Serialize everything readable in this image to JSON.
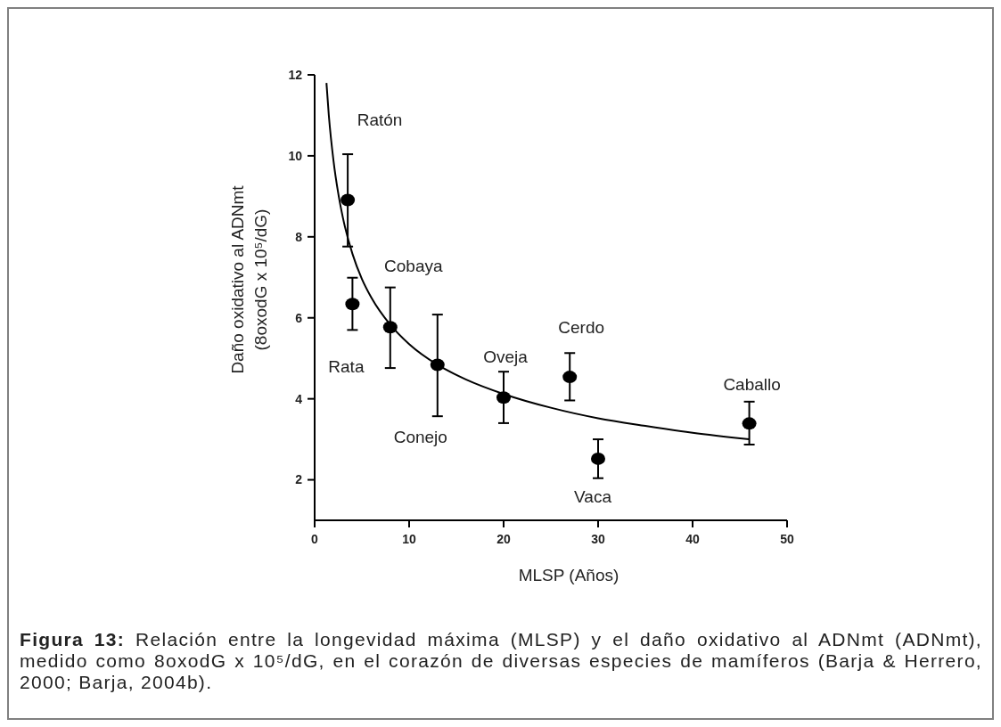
{
  "chart_data": {
    "type": "scatter",
    "xlabel": "MLSP (Años)",
    "ylabel": "Daño oxidativo al ADNmt\n(8oxodG x 10⁵/dG)",
    "xlim": [
      0,
      50
    ],
    "xticks": [
      0,
      10,
      20,
      30,
      40,
      50
    ],
    "ylim": [
      1,
      12
    ],
    "yticks": [
      2,
      4,
      6,
      8,
      10,
      12
    ],
    "grid": false,
    "marker": "circle",
    "series": [
      {
        "color": "#000000",
        "x": [
          3.5,
          4,
          8,
          13,
          20,
          27,
          30,
          46
        ],
        "values": [
          8.91,
          6.34,
          5.77,
          4.84,
          4.03,
          4.54,
          2.52,
          3.39
        ],
        "errors": [
          [
            7.76,
            10.04
          ],
          [
            5.7,
            6.99
          ],
          [
            4.76,
            6.75
          ],
          [
            3.57,
            6.08
          ],
          [
            3.4,
            4.67
          ],
          [
            3.96,
            5.13
          ],
          [
            2.04,
            3.0
          ],
          [
            2.87,
            3.93
          ]
        ]
      },
      {
        "type": "line",
        "color": "#000000",
        "marker": "none",
        "x": [
          1.25,
          1.5,
          2,
          2.5,
          3,
          4,
          5,
          6,
          8,
          10,
          13,
          16,
          20,
          25,
          30,
          35,
          40,
          46
        ],
        "values": [
          11.8,
          11.0,
          9.87,
          9.07,
          8.46,
          7.58,
          6.96,
          6.5,
          5.83,
          5.35,
          4.84,
          4.48,
          4.12,
          3.78,
          3.52,
          3.33,
          3.16,
          3.0
        ]
      }
    ],
    "annotations": [
      "Ratón",
      "Rata",
      "Cobaya",
      "Conejo",
      "Oveja",
      "Cerdo",
      "Vaca",
      "Caballo",
      "Figura 13: Relación entre la longevidad máxima (MLSP) y el daño oxidativo al ADNmt (ADNmt), medido como 8oxodG x 10⁵/dG, en el corazón de diversas especies de mamíferos (Barja & Herrero, 2000; Barja, 2004b)."
    ]
  }
}
